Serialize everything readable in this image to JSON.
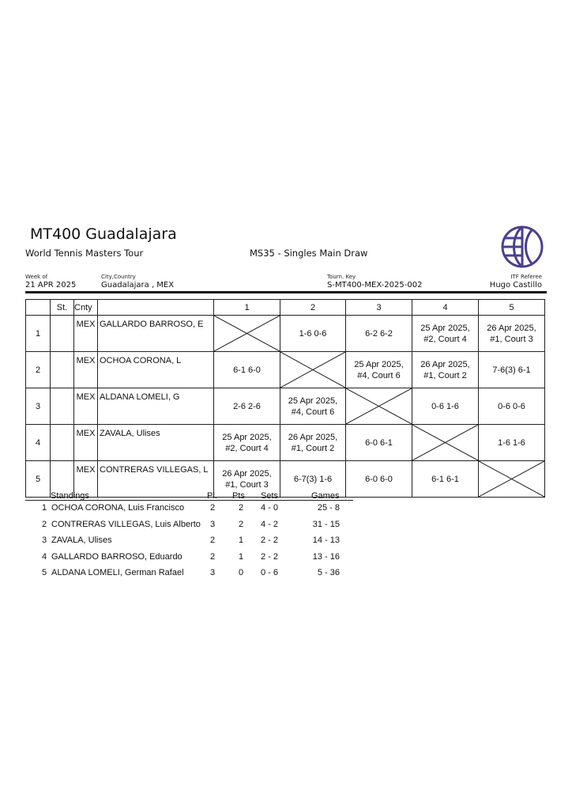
{
  "header": {
    "title": "MT400 Guadalajara",
    "tour": "World Tennis Masters Tour",
    "draw_name": "MS35 - Singles Main Draw",
    "week_label": "Week of",
    "week_value": "21 APR 2025",
    "city_label": "City,Country",
    "city_value": "Guadalajara , MEX",
    "key_label": "Tourn. Key",
    "key_value": "S-MT400-MEX-2025-002",
    "referee_label": "ITF Referee",
    "referee_value": "Hugo Castillo",
    "logo_color": "#4b3f91"
  },
  "table": {
    "headers": {
      "st": "St.",
      "cnty": "Cnty",
      "cols": [
        "1",
        "2",
        "3",
        "4",
        "5"
      ]
    },
    "rows": [
      {
        "num": "1",
        "st": "",
        "cnty": "MEX",
        "name": "GALLARDO BARROSO, E",
        "cells": [
          "X",
          "1-6 0-6",
          "6-2 6-2",
          "25 Apr 2025,\n#2, Court 4",
          "26 Apr 2025,\n#1, Court 3"
        ]
      },
      {
        "num": "2",
        "st": "",
        "cnty": "MEX",
        "name": "OCHOA CORONA, L",
        "cells": [
          "6-1 6-0",
          "X",
          "25 Apr 2025,\n#4, Court 6",
          "26 Apr 2025,\n#1, Court 2",
          "7-6(3) 6-1"
        ]
      },
      {
        "num": "3",
        "st": "",
        "cnty": "MEX",
        "name": "ALDANA LOMELI, G",
        "cells": [
          "2-6 2-6",
          "25 Apr 2025,\n#4, Court 6",
          "X",
          "0-6 1-6",
          "0-6 0-6"
        ]
      },
      {
        "num": "4",
        "st": "",
        "cnty": "MEX",
        "name": "ZAVALA, Ulises",
        "cells": [
          "25 Apr 2025,\n#2, Court 4",
          "26 Apr 2025,\n#1, Court 2",
          "6-0 6-1",
          "X",
          "1-6 1-6"
        ]
      },
      {
        "num": "5",
        "st": "",
        "cnty": "MEX",
        "name": "CONTRERAS VILLEGAS, L",
        "cells": [
          "26 Apr 2025,\n#1, Court 3",
          "6-7(3) 1-6",
          "6-0 6-0",
          "6-1 6-1",
          "X"
        ]
      }
    ]
  },
  "standings": {
    "headers": {
      "title": "Standings",
      "pl": "Pl.",
      "pts": "Pts",
      "sets": "Sets",
      "games": "Games"
    },
    "rows": [
      {
        "rank": "1",
        "name": "OCHOA CORONA, Luis Francisco",
        "pl": "2",
        "pts": "2",
        "sets": "4 - 0",
        "games": "25 - 8"
      },
      {
        "rank": "2",
        "name": "CONTRERAS VILLEGAS, Luis Alberto",
        "pl": "3",
        "pts": "2",
        "sets": "4 - 2",
        "games": "31 - 15"
      },
      {
        "rank": "3",
        "name": "ZAVALA, Ulises",
        "pl": "2",
        "pts": "1",
        "sets": "2 - 2",
        "games": "14 - 13"
      },
      {
        "rank": "4",
        "name": "GALLARDO BARROSO, Eduardo",
        "pl": "2",
        "pts": "1",
        "sets": "2 - 2",
        "games": "13 - 16"
      },
      {
        "rank": "5",
        "name": "ALDANA LOMELI, German Rafael",
        "pl": "3",
        "pts": "0",
        "sets": "0 - 6",
        "games": "5 - 36"
      }
    ]
  }
}
